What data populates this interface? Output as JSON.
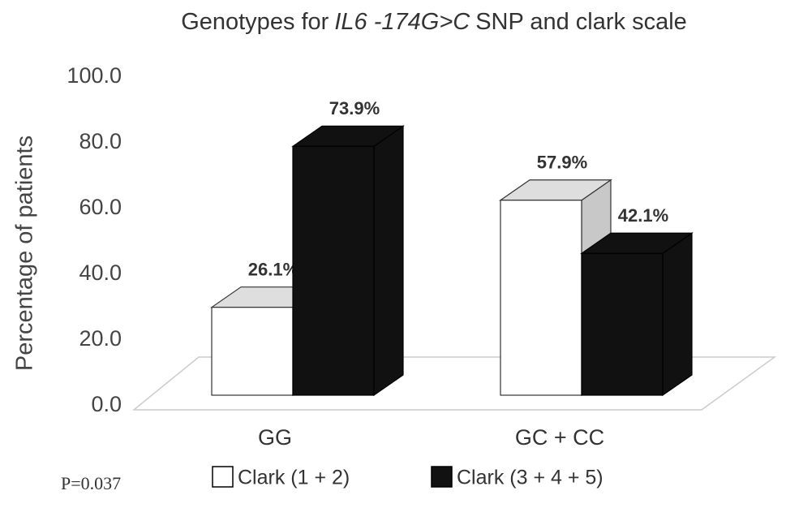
{
  "chart_data": {
    "type": "bar3d",
    "title": [
      "Genotypes for",
      "IL6 -174G>C",
      "SNP and clark scale"
    ],
    "title_italic_part": 1,
    "y_label": "Percentage of patients",
    "categories": [
      "GG",
      "GC + CC"
    ],
    "series": [
      {
        "name": "Clark (1 + 2)",
        "color": "#ffffff",
        "values": [
          26.1,
          57.9
        ],
        "value_labels": [
          "26.1%",
          "57.9%"
        ]
      },
      {
        "name": "Clark (3 + 4 + 5)",
        "color": "#111111",
        "values": [
          73.9,
          42.1
        ],
        "value_labels": [
          "73.9%",
          "42.1%"
        ]
      }
    ],
    "ylim": [
      0,
      100
    ],
    "yticks": [
      {
        "value": 0,
        "label": "0.0"
      },
      {
        "value": 20,
        "label": "20.0"
      },
      {
        "value": 40,
        "label": "40.0"
      },
      {
        "value": 60,
        "label": "60.0"
      },
      {
        "value": 80,
        "label": "80.0"
      },
      {
        "value": 100,
        "label": "100.0"
      }
    ],
    "annotation": "P=0.037",
    "legend": "bottom"
  }
}
